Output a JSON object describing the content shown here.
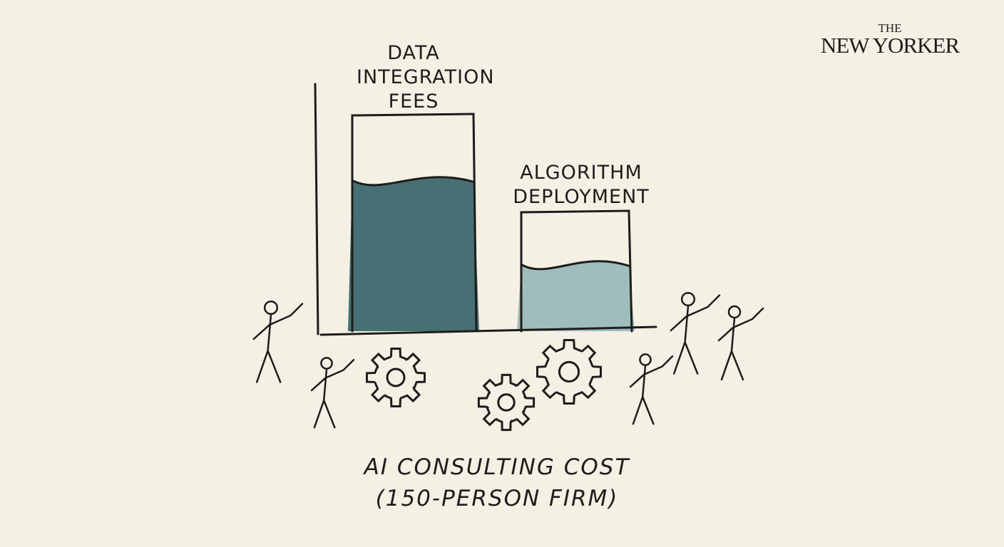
{
  "logo": [
    "THE",
    "NEW YORKER"
  ],
  "chart_data": {
    "type": "bar",
    "title": "AI CONSULTING COST",
    "subtitle": "(150-PERSON FIRM)",
    "categories": [
      "DATA INTEGRATION FEES",
      "ALGORITHM DEPLOYMENT"
    ],
    "values": [
      61,
      27
    ],
    "colors": [
      "#2f5d64",
      "#93b5b7"
    ],
    "ylim": [
      0,
      100
    ]
  }
}
